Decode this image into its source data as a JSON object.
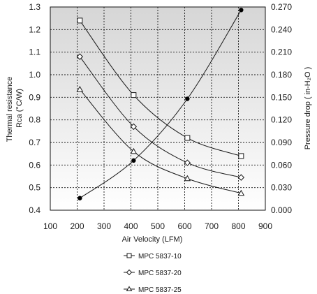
{
  "chart_data": {
    "type": "line",
    "xlabel": "Air Velocity (LFM)",
    "ylabel_left": [
      "Thermal resistance",
      "Rca (°C/W)"
    ],
    "ylabel_right": "Pressure drop ( in-H₂O )",
    "xlim": [
      100,
      900
    ],
    "ylim_left": [
      0.4,
      1.3
    ],
    "ylim_right": [
      0.0,
      0.27
    ],
    "x_ticks": [
      "100",
      "200",
      "300",
      "400",
      "500",
      "600",
      "700",
      "800",
      "900"
    ],
    "y_left_ticks": [
      "0.4",
      "0.5",
      "0.6",
      "0.7",
      "0.8",
      "0.9",
      "1.0",
      "1.1",
      "1.2",
      "1.3"
    ],
    "y_right_ticks": [
      "0.000",
      "0.030",
      "0.060",
      "0.090",
      "0.120",
      "0.150",
      "0.180",
      "0.210",
      "0.240",
      "0.270"
    ],
    "grid": true,
    "background_gradient": [
      "#d6d6d6",
      "#ffffff"
    ],
    "series": [
      {
        "name": "MPC 5837-10",
        "axis": "left",
        "marker": "square",
        "color": "#1a1a1a",
        "x": [
          210,
          410,
          610,
          810
        ],
        "values": [
          1.24,
          0.91,
          0.72,
          0.64
        ]
      },
      {
        "name": "MPC 5837-20",
        "axis": "left",
        "marker": "diamond",
        "color": "#1a1a1a",
        "x": [
          210,
          410,
          610,
          810
        ],
        "values": [
          1.08,
          0.77,
          0.61,
          0.545
        ]
      },
      {
        "name": "MPC 5837-25",
        "axis": "left",
        "marker": "triangle",
        "color": "#1a1a1a",
        "x": [
          210,
          410,
          610,
          810
        ],
        "values": [
          0.935,
          0.66,
          0.54,
          0.475
        ]
      },
      {
        "axis": "right",
        "marker": "dot",
        "color": "#000000",
        "x": [
          210,
          410,
          610,
          810
        ],
        "values": [
          0.016,
          0.066,
          0.148,
          0.266
        ]
      }
    ],
    "legend": {
      "placement": "bottom",
      "entries": [
        "MPC 5837-10",
        "MPC 5837-20",
        "MPC 5837-25"
      ]
    }
  }
}
